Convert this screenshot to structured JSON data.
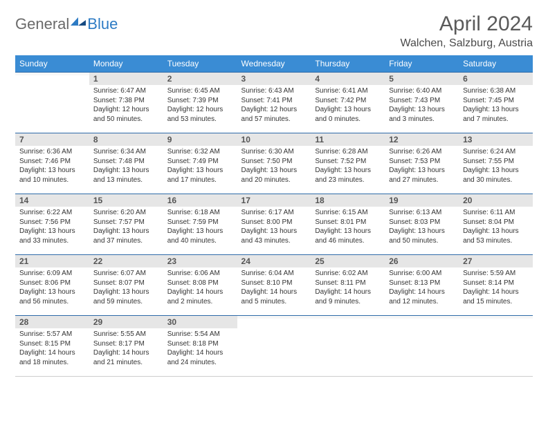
{
  "logo": {
    "text1": "General",
    "text2": "Blue"
  },
  "title": "April 2024",
  "location": "Walchen, Salzburg, Austria",
  "colors": {
    "header_bg": "#3a8cd4",
    "header_text": "#ffffff",
    "daynum_bg": "#e6e6e6",
    "row_border": "#2d6aa8",
    "logo_gray": "#6a6a6a",
    "logo_blue": "#2d7bc4"
  },
  "weekdays": [
    "Sunday",
    "Monday",
    "Tuesday",
    "Wednesday",
    "Thursday",
    "Friday",
    "Saturday"
  ],
  "weeks": [
    [
      {
        "n": "",
        "sr": "",
        "ss": "",
        "dl": ""
      },
      {
        "n": "1",
        "sr": "Sunrise: 6:47 AM",
        "ss": "Sunset: 7:38 PM",
        "dl": "Daylight: 12 hours and 50 minutes."
      },
      {
        "n": "2",
        "sr": "Sunrise: 6:45 AM",
        "ss": "Sunset: 7:39 PM",
        "dl": "Daylight: 12 hours and 53 minutes."
      },
      {
        "n": "3",
        "sr": "Sunrise: 6:43 AM",
        "ss": "Sunset: 7:41 PM",
        "dl": "Daylight: 12 hours and 57 minutes."
      },
      {
        "n": "4",
        "sr": "Sunrise: 6:41 AM",
        "ss": "Sunset: 7:42 PM",
        "dl": "Daylight: 13 hours and 0 minutes."
      },
      {
        "n": "5",
        "sr": "Sunrise: 6:40 AM",
        "ss": "Sunset: 7:43 PM",
        "dl": "Daylight: 13 hours and 3 minutes."
      },
      {
        "n": "6",
        "sr": "Sunrise: 6:38 AM",
        "ss": "Sunset: 7:45 PM",
        "dl": "Daylight: 13 hours and 7 minutes."
      }
    ],
    [
      {
        "n": "7",
        "sr": "Sunrise: 6:36 AM",
        "ss": "Sunset: 7:46 PM",
        "dl": "Daylight: 13 hours and 10 minutes."
      },
      {
        "n": "8",
        "sr": "Sunrise: 6:34 AM",
        "ss": "Sunset: 7:48 PM",
        "dl": "Daylight: 13 hours and 13 minutes."
      },
      {
        "n": "9",
        "sr": "Sunrise: 6:32 AM",
        "ss": "Sunset: 7:49 PM",
        "dl": "Daylight: 13 hours and 17 minutes."
      },
      {
        "n": "10",
        "sr": "Sunrise: 6:30 AM",
        "ss": "Sunset: 7:50 PM",
        "dl": "Daylight: 13 hours and 20 minutes."
      },
      {
        "n": "11",
        "sr": "Sunrise: 6:28 AM",
        "ss": "Sunset: 7:52 PM",
        "dl": "Daylight: 13 hours and 23 minutes."
      },
      {
        "n": "12",
        "sr": "Sunrise: 6:26 AM",
        "ss": "Sunset: 7:53 PM",
        "dl": "Daylight: 13 hours and 27 minutes."
      },
      {
        "n": "13",
        "sr": "Sunrise: 6:24 AM",
        "ss": "Sunset: 7:55 PM",
        "dl": "Daylight: 13 hours and 30 minutes."
      }
    ],
    [
      {
        "n": "14",
        "sr": "Sunrise: 6:22 AM",
        "ss": "Sunset: 7:56 PM",
        "dl": "Daylight: 13 hours and 33 minutes."
      },
      {
        "n": "15",
        "sr": "Sunrise: 6:20 AM",
        "ss": "Sunset: 7:57 PM",
        "dl": "Daylight: 13 hours and 37 minutes."
      },
      {
        "n": "16",
        "sr": "Sunrise: 6:18 AM",
        "ss": "Sunset: 7:59 PM",
        "dl": "Daylight: 13 hours and 40 minutes."
      },
      {
        "n": "17",
        "sr": "Sunrise: 6:17 AM",
        "ss": "Sunset: 8:00 PM",
        "dl": "Daylight: 13 hours and 43 minutes."
      },
      {
        "n": "18",
        "sr": "Sunrise: 6:15 AM",
        "ss": "Sunset: 8:01 PM",
        "dl": "Daylight: 13 hours and 46 minutes."
      },
      {
        "n": "19",
        "sr": "Sunrise: 6:13 AM",
        "ss": "Sunset: 8:03 PM",
        "dl": "Daylight: 13 hours and 50 minutes."
      },
      {
        "n": "20",
        "sr": "Sunrise: 6:11 AM",
        "ss": "Sunset: 8:04 PM",
        "dl": "Daylight: 13 hours and 53 minutes."
      }
    ],
    [
      {
        "n": "21",
        "sr": "Sunrise: 6:09 AM",
        "ss": "Sunset: 8:06 PM",
        "dl": "Daylight: 13 hours and 56 minutes."
      },
      {
        "n": "22",
        "sr": "Sunrise: 6:07 AM",
        "ss": "Sunset: 8:07 PM",
        "dl": "Daylight: 13 hours and 59 minutes."
      },
      {
        "n": "23",
        "sr": "Sunrise: 6:06 AM",
        "ss": "Sunset: 8:08 PM",
        "dl": "Daylight: 14 hours and 2 minutes."
      },
      {
        "n": "24",
        "sr": "Sunrise: 6:04 AM",
        "ss": "Sunset: 8:10 PM",
        "dl": "Daylight: 14 hours and 5 minutes."
      },
      {
        "n": "25",
        "sr": "Sunrise: 6:02 AM",
        "ss": "Sunset: 8:11 PM",
        "dl": "Daylight: 14 hours and 9 minutes."
      },
      {
        "n": "26",
        "sr": "Sunrise: 6:00 AM",
        "ss": "Sunset: 8:13 PM",
        "dl": "Daylight: 14 hours and 12 minutes."
      },
      {
        "n": "27",
        "sr": "Sunrise: 5:59 AM",
        "ss": "Sunset: 8:14 PM",
        "dl": "Daylight: 14 hours and 15 minutes."
      }
    ],
    [
      {
        "n": "28",
        "sr": "Sunrise: 5:57 AM",
        "ss": "Sunset: 8:15 PM",
        "dl": "Daylight: 14 hours and 18 minutes."
      },
      {
        "n": "29",
        "sr": "Sunrise: 5:55 AM",
        "ss": "Sunset: 8:17 PM",
        "dl": "Daylight: 14 hours and 21 minutes."
      },
      {
        "n": "30",
        "sr": "Sunrise: 5:54 AM",
        "ss": "Sunset: 8:18 PM",
        "dl": "Daylight: 14 hours and 24 minutes."
      },
      {
        "n": "",
        "sr": "",
        "ss": "",
        "dl": ""
      },
      {
        "n": "",
        "sr": "",
        "ss": "",
        "dl": ""
      },
      {
        "n": "",
        "sr": "",
        "ss": "",
        "dl": ""
      },
      {
        "n": "",
        "sr": "",
        "ss": "",
        "dl": ""
      }
    ]
  ]
}
